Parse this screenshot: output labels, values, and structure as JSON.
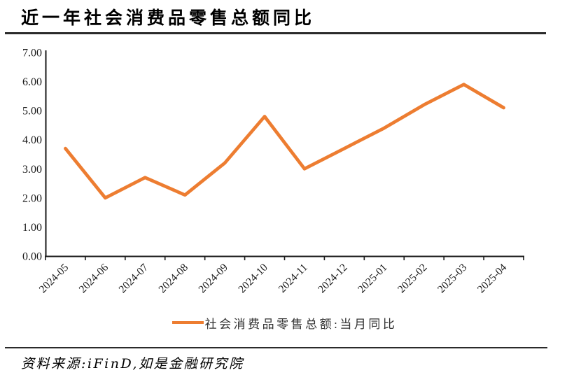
{
  "page": {
    "title": "近一年社会消费品零售总额同比"
  },
  "footer": {
    "source_text": "资料来源:iFinD,如是金融研究院"
  },
  "chart_data": {
    "type": "line",
    "title": "近一年社会消费品零售总额同比",
    "categories": [
      "2024-05",
      "2024-06",
      "2024-07",
      "2024-08",
      "2024-09",
      "2024-10",
      "2024-11",
      "2024-12",
      "2025-01",
      "2025-02",
      "2025-03",
      "2025-04"
    ],
    "series": [
      {
        "name": "社会消费品零售总额:当月同比",
        "values": [
          3.7,
          2.0,
          2.7,
          2.1,
          3.2,
          4.8,
          3.0,
          3.7,
          4.4,
          5.2,
          5.9,
          5.1
        ],
        "color": "#ED7D31"
      }
    ],
    "xlabel": "",
    "ylabel": "",
    "ylim": [
      0,
      7
    ],
    "ytick_step": 1,
    "ytick_labels": [
      "0.00",
      "1.00",
      "2.00",
      "3.00",
      "4.00",
      "5.00",
      "6.00",
      "7.00"
    ],
    "grid": false,
    "legend_position": "bottom",
    "axis_color": "#1a1a1a",
    "tick_label_color": "#1a1a1a"
  }
}
